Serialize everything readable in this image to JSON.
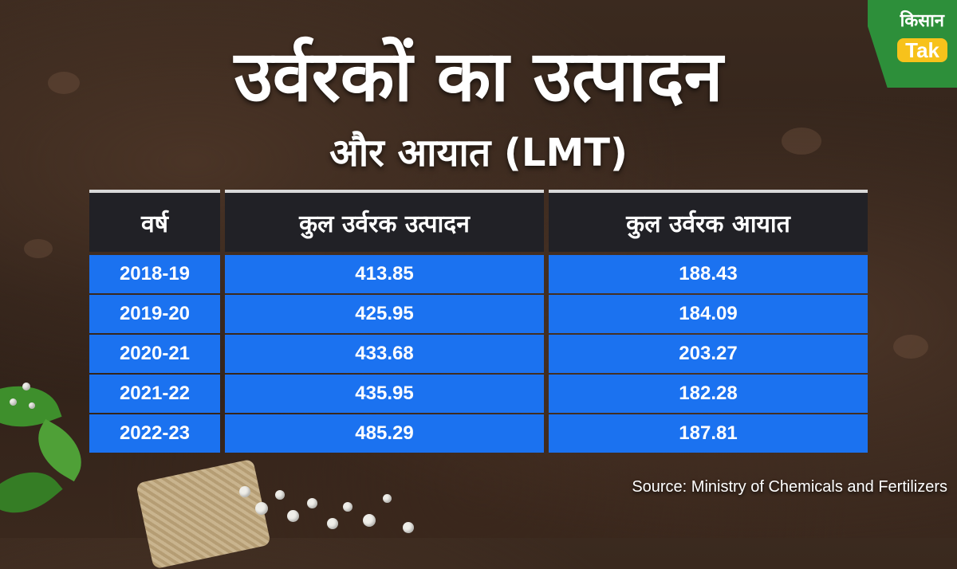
{
  "title": "उर्वरकों का उत्पादन",
  "subtitle": "और आयात (LMT)",
  "logo": {
    "hindi": "किसान",
    "english": "Tak"
  },
  "table": {
    "headers": [
      "वर्ष",
      "कुल उर्वरक उत्पादन",
      "कुल उर्वरक आयात"
    ],
    "rows": [
      [
        "2018-19",
        "413.85",
        "188.43"
      ],
      [
        "2019-20",
        "425.95",
        "184.09"
      ],
      [
        "2020-21",
        "433.68",
        "203.27"
      ],
      [
        "2021-22",
        "435.95",
        "182.28"
      ],
      [
        "2022-23",
        "485.29",
        "187.81"
      ]
    ]
  },
  "source": "Source: Ministry of Chemicals and Fertilizers",
  "colors": {
    "header_bg": "#212126",
    "row_bg": "#1b72f0",
    "logo_green": "#2d8f3a",
    "logo_yellow": "#f7c21b"
  }
}
